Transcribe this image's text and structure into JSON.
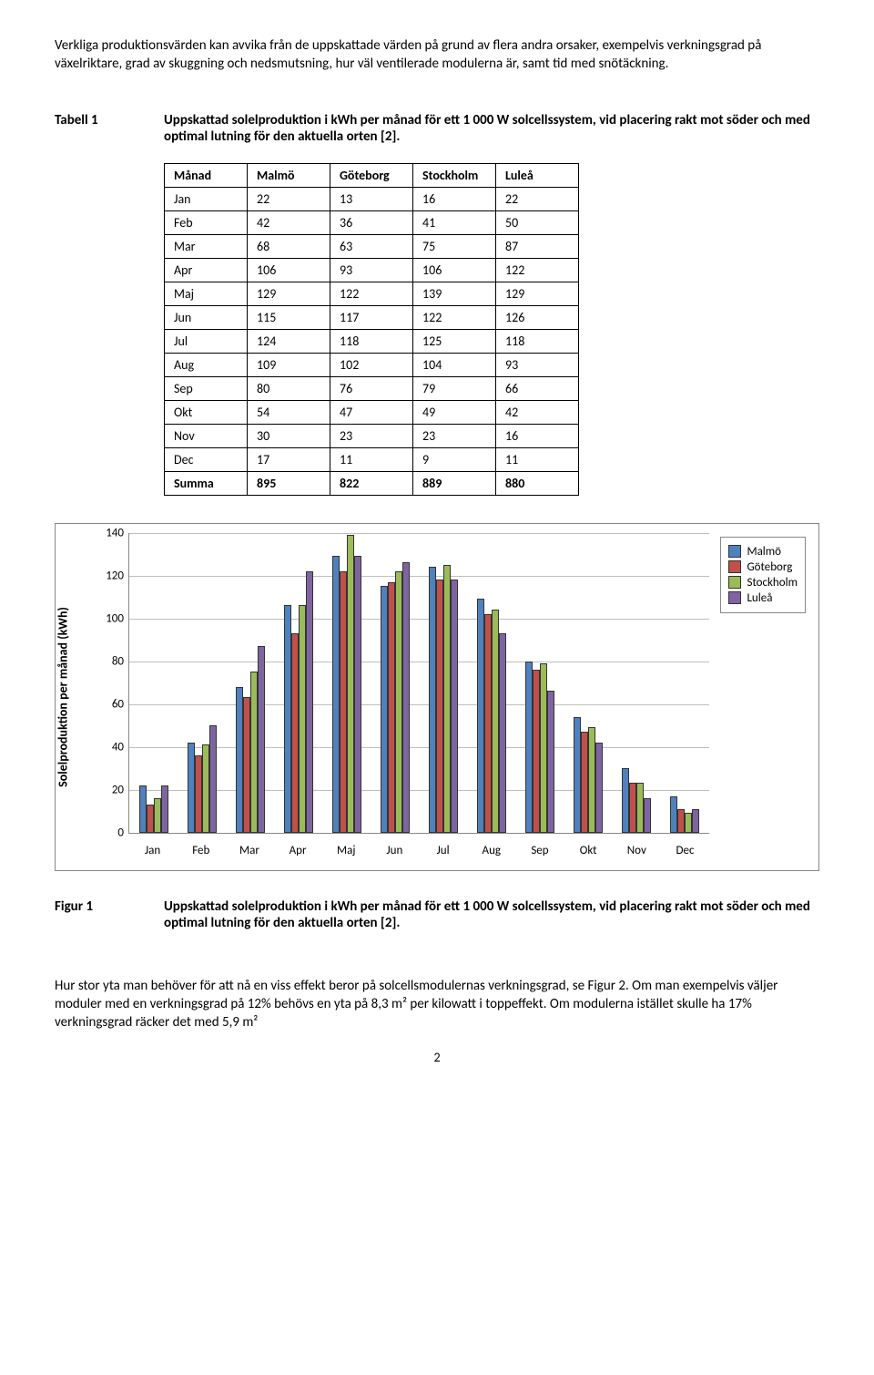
{
  "intro_para": "Verkliga produktionsvärden kan avvika från de uppskattade värden på grund av flera andra orsaker, exempelvis verkningsgrad på växelriktare, grad av skuggning och nedsmutsning, hur väl ventilerade modulerna är, samt tid med snötäckning.",
  "table_caption": {
    "label": "Tabell 1",
    "text": "Uppskattad solelproduktion i kWh per månad för ett 1 000 W solcellssystem, vid placering rakt mot söder och med optimal lutning för den aktuella orten [2]."
  },
  "table": {
    "headers": [
      "Månad",
      "Malmö",
      "Göteborg",
      "Stockholm",
      "Luleå"
    ],
    "rows": [
      [
        "Jan",
        "22",
        "13",
        "16",
        "22"
      ],
      [
        "Feb",
        "42",
        "36",
        "41",
        "50"
      ],
      [
        "Mar",
        "68",
        "63",
        "75",
        "87"
      ],
      [
        "Apr",
        "106",
        "93",
        "106",
        "122"
      ],
      [
        "Maj",
        "129",
        "122",
        "139",
        "129"
      ],
      [
        "Jun",
        "115",
        "117",
        "122",
        "126"
      ],
      [
        "Jul",
        "124",
        "118",
        "125",
        "118"
      ],
      [
        "Aug",
        "109",
        "102",
        "104",
        "93"
      ],
      [
        "Sep",
        "80",
        "76",
        "79",
        "66"
      ],
      [
        "Okt",
        "54",
        "47",
        "49",
        "42"
      ],
      [
        "Nov",
        "30",
        "23",
        "23",
        "16"
      ],
      [
        "Dec",
        "17",
        "11",
        "9",
        "11"
      ]
    ],
    "summary": [
      "Summa",
      "895",
      "822",
      "889",
      "880"
    ]
  },
  "chart": {
    "type": "bar",
    "y_label": "Solelproduktion per månad (kWh)",
    "y_max": 140,
    "y_tick_step": 20,
    "categories": [
      "Jan",
      "Feb",
      "Mar",
      "Apr",
      "Maj",
      "Jun",
      "Jul",
      "Aug",
      "Sep",
      "Okt",
      "Nov",
      "Dec"
    ],
    "series": [
      {
        "name": "Malmö",
        "color": "#4f81bd",
        "values": [
          22,
          42,
          68,
          106,
          129,
          115,
          124,
          109,
          80,
          54,
          30,
          17
        ]
      },
      {
        "name": "Göteborg",
        "color": "#c0504d",
        "values": [
          13,
          36,
          63,
          93,
          122,
          117,
          118,
          102,
          76,
          47,
          23,
          11
        ]
      },
      {
        "name": "Stockholm",
        "color": "#9bbb59",
        "values": [
          16,
          41,
          75,
          106,
          139,
          122,
          125,
          104,
          79,
          49,
          23,
          9
        ]
      },
      {
        "name": "Luleå",
        "color": "#8064a2",
        "values": [
          22,
          50,
          87,
          122,
          129,
          126,
          118,
          93,
          66,
          42,
          16,
          11
        ]
      }
    ],
    "grid_color": "#bfbfbf",
    "border_color": "#888888",
    "background_color": "#ffffff"
  },
  "figure_caption": {
    "label": "Figur 1",
    "text": "Uppskattad solelproduktion i kWh per månad för ett 1 000 W solcellssystem, vid placering rakt mot söder och med optimal lutning för den aktuella orten [2]."
  },
  "closing_para": "Hur stor yta man behöver för att nå en viss effekt beror på solcellsmodulernas verkningsgrad, se Figur 2. Om man exempelvis väljer moduler med en verkningsgrad på 12% behövs en yta på 8,3 m² per kilowatt i toppeffekt. Om modulerna istället skulle ha 17% verkningsgrad räcker det med 5,9 m²",
  "page_number": "2"
}
